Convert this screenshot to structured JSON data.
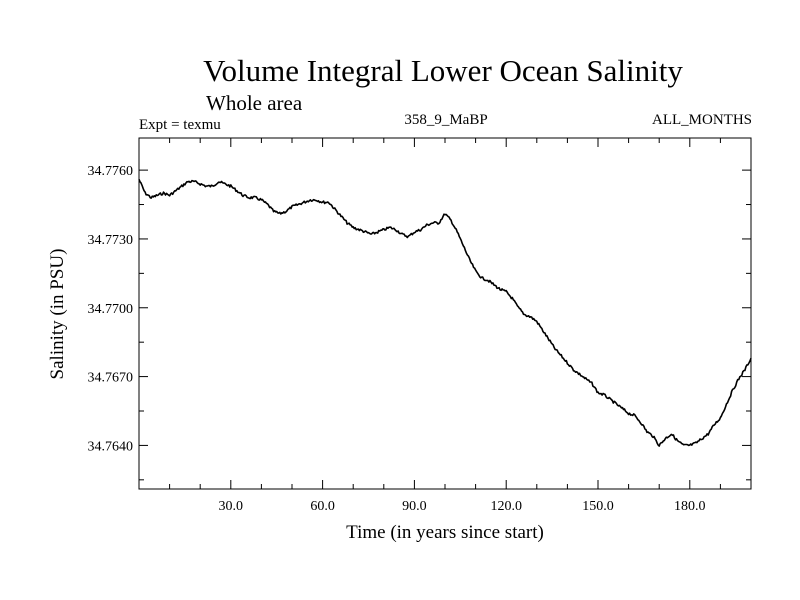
{
  "chart_data": {
    "type": "line",
    "title": "Volume Integral Lower Ocean Salinity",
    "subtitle": "Whole area",
    "experiment_label": "Expt = texmu",
    "run_label": "358_9_MaBP",
    "months_label": "ALL_MONTHS",
    "xlabel": "Time (in years since start)",
    "ylabel": "Salinity (in PSU)",
    "xlim": [
      0,
      200
    ],
    "ylim": [
      34.7621,
      34.7774
    ],
    "x_ticks": [
      30,
      60,
      90,
      120,
      150,
      180
    ],
    "x_tick_labels": [
      "30.0",
      "60.0",
      "90.0",
      "120.0",
      "150.0",
      "180.0"
    ],
    "y_ticks": [
      34.764,
      34.767,
      34.77,
      34.773,
      34.776
    ],
    "y_tick_labels": [
      "34.7640",
      "34.7670",
      "34.7700",
      "34.7730",
      "34.7760"
    ],
    "series": [
      {
        "name": "Volume integral lower ocean salinity",
        "x": [
          0,
          2,
          4,
          6,
          8,
          10,
          12,
          14,
          16,
          18,
          20,
          22,
          24,
          26,
          28,
          30,
          32,
          34,
          36,
          38,
          40,
          42,
          44,
          46,
          48,
          50,
          52,
          54,
          56,
          58,
          60,
          62,
          64,
          66,
          68,
          70,
          72,
          74,
          76,
          78,
          80,
          82,
          84,
          86,
          88,
          90,
          92,
          94,
          96,
          98,
          100,
          102,
          104,
          106,
          108,
          110,
          112,
          114,
          116,
          118,
          120,
          122,
          124,
          126,
          128,
          130,
          132,
          134,
          136,
          138,
          140,
          142,
          144,
          146,
          148,
          150,
          152,
          154,
          156,
          158,
          160,
          162,
          164,
          166,
          168,
          170,
          172,
          174,
          176,
          178,
          180,
          182,
          184,
          186,
          188,
          190,
          192,
          194,
          196,
          198,
          200
        ],
        "y": [
          34.7756,
          34.775,
          34.7748,
          34.7749,
          34.775,
          34.7749,
          34.7751,
          34.7753,
          34.7755,
          34.7755,
          34.7754,
          34.7753,
          34.7753,
          34.7755,
          34.7754,
          34.7753,
          34.7751,
          34.7749,
          34.7748,
          34.7748,
          34.7747,
          34.7745,
          34.7742,
          34.7741,
          34.7742,
          34.7744,
          34.7745,
          34.7746,
          34.7747,
          34.7747,
          34.7746,
          34.7746,
          34.7743,
          34.774,
          34.7737,
          34.7735,
          34.7734,
          34.7733,
          34.7732,
          34.7733,
          34.7734,
          34.7735,
          34.7734,
          34.7732,
          34.7731,
          34.7733,
          34.7734,
          34.7736,
          34.7737,
          34.7737,
          34.7741,
          34.7738,
          34.7733,
          34.7727,
          34.7721,
          34.7716,
          34.7713,
          34.7712,
          34.771,
          34.7708,
          34.7707,
          34.7704,
          34.77,
          34.7697,
          34.7696,
          34.7694,
          34.769,
          34.7686,
          34.7682,
          34.7679,
          34.7676,
          34.7673,
          34.7671,
          34.7669,
          34.7667,
          34.7663,
          34.7662,
          34.766,
          34.7658,
          34.7656,
          34.7654,
          34.7653,
          34.765,
          34.7646,
          34.7644,
          34.764,
          34.7643,
          34.7645,
          34.7642,
          34.764,
          34.764,
          34.7641,
          34.7643,
          34.7645,
          34.7649,
          34.7652,
          34.7658,
          34.7664,
          34.7669,
          34.7673,
          34.7678
        ]
      }
    ],
    "grid": false,
    "line_color": "#000000"
  }
}
